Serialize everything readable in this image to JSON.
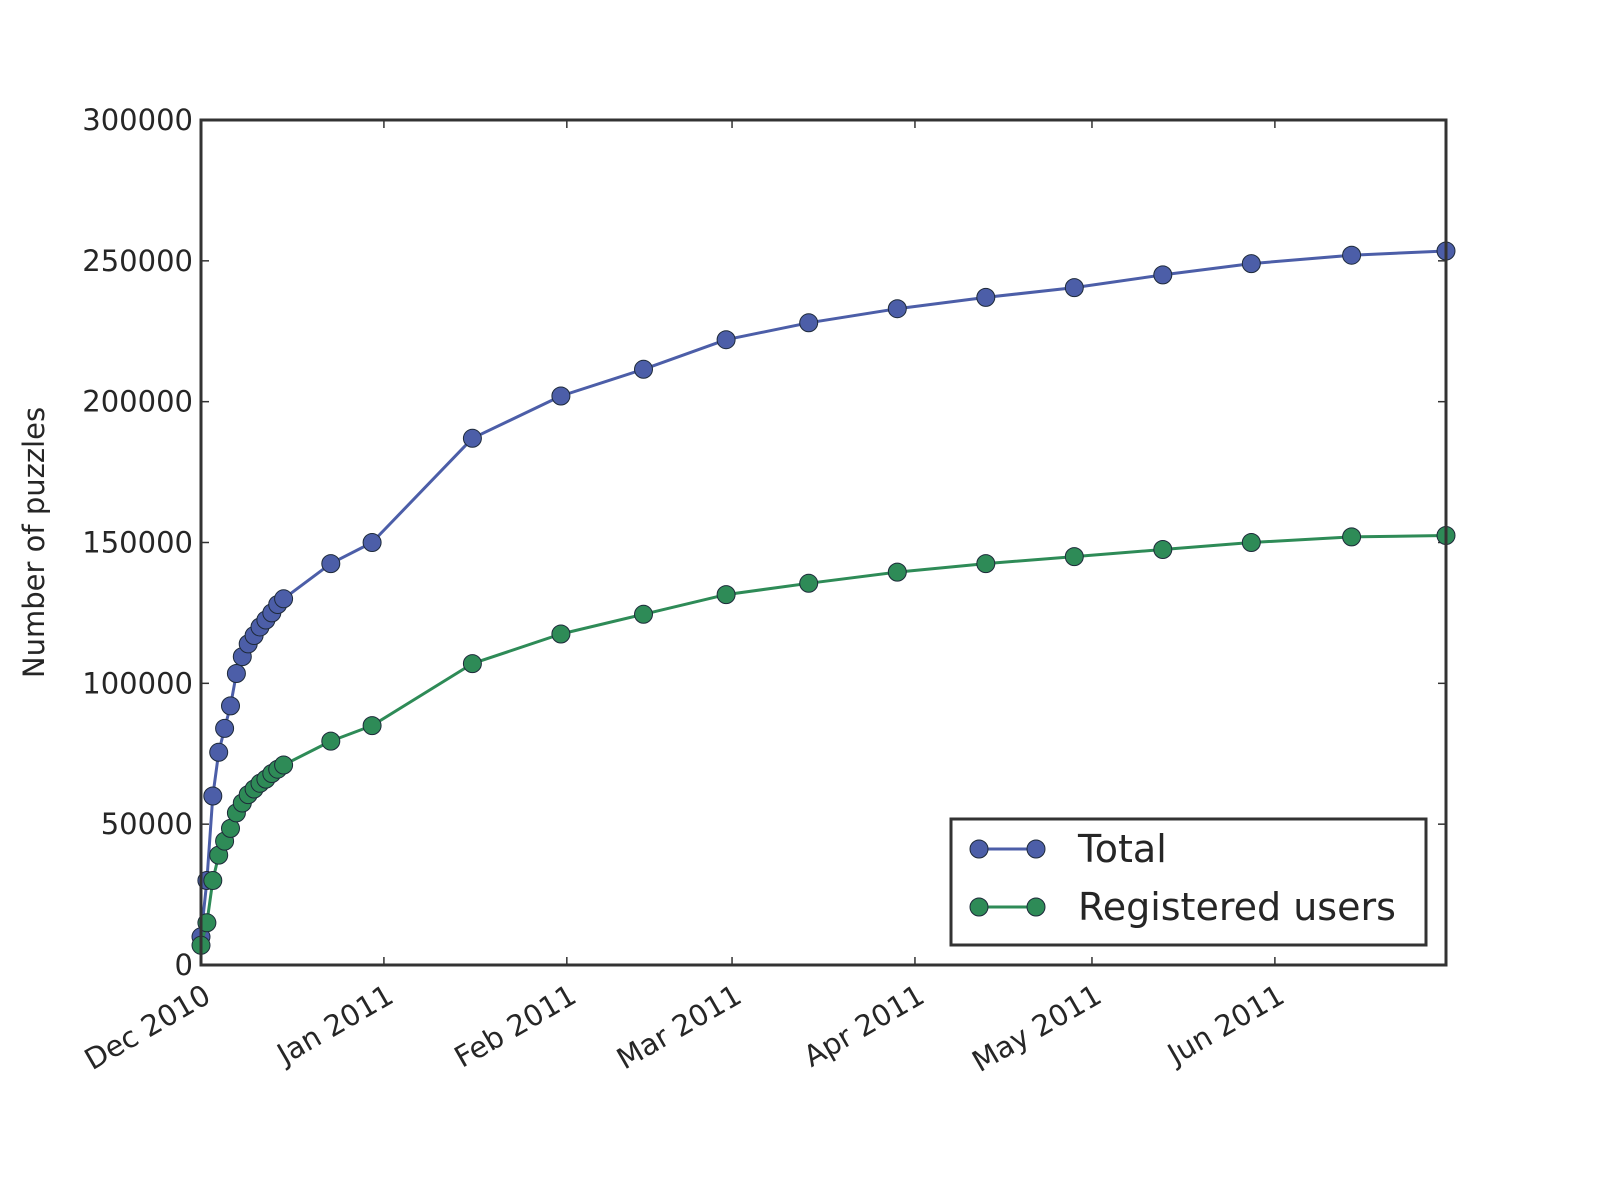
{
  "chart_data": {
    "type": "line",
    "title": "",
    "xlabel": "",
    "ylabel": "Number of puzzles",
    "x_scale": "date",
    "xlim": [
      "2010-12-01",
      "2011-06-30"
    ],
    "ylim": [
      0,
      300000
    ],
    "yticks": [
      0,
      50000,
      100000,
      150000,
      200000,
      250000,
      300000
    ],
    "xticks": [
      {
        "date": "2010-12-01",
        "label": "Dec 2010"
      },
      {
        "date": "2011-01-01",
        "label": "Jan 2011"
      },
      {
        "date": "2011-02-01",
        "label": "Feb 2011"
      },
      {
        "date": "2011-03-01",
        "label": "Mar 2011"
      },
      {
        "date": "2011-04-01",
        "label": "Apr 2011"
      },
      {
        "date": "2011-05-01",
        "label": "May 2011"
      },
      {
        "date": "2011-06-01",
        "label": "Jun 2011"
      }
    ],
    "grid": false,
    "legend_position": "lower-right",
    "series": [
      {
        "name": "Total",
        "color": "#4c5ea8",
        "marker_color": "#4c5ea8",
        "points": [
          [
            "2010-12-01",
            10000
          ],
          [
            "2010-12-02",
            30000
          ],
          [
            "2010-12-03",
            60000
          ],
          [
            "2010-12-04",
            75500
          ],
          [
            "2010-12-05",
            84000
          ],
          [
            "2010-12-06",
            92000
          ],
          [
            "2010-12-07",
            103500
          ],
          [
            "2010-12-08",
            109500
          ],
          [
            "2010-12-09",
            114000
          ],
          [
            "2010-12-10",
            117000
          ],
          [
            "2010-12-11",
            120000
          ],
          [
            "2010-12-12",
            122500
          ],
          [
            "2010-12-13",
            125000
          ],
          [
            "2010-12-14",
            128000
          ],
          [
            "2010-12-15",
            130000
          ],
          [
            "2010-12-23",
            142500
          ],
          [
            "2010-12-30",
            150000
          ],
          [
            "2011-01-16",
            187000
          ],
          [
            "2011-01-31",
            202000
          ],
          [
            "2011-02-14",
            211500
          ],
          [
            "2011-02-28",
            222000
          ],
          [
            "2011-03-14",
            228000
          ],
          [
            "2011-03-29",
            233000
          ],
          [
            "2011-04-13",
            237000
          ],
          [
            "2011-04-28",
            240500
          ],
          [
            "2011-05-13",
            245000
          ],
          [
            "2011-05-28",
            249000
          ],
          [
            "2011-06-14",
            252000
          ],
          [
            "2011-06-30",
            253500
          ]
        ]
      },
      {
        "name": "Registered users",
        "color": "#2e8b57",
        "marker_color": "#2e8b57",
        "points": [
          [
            "2010-12-01",
            7000
          ],
          [
            "2010-12-02",
            15000
          ],
          [
            "2010-12-03",
            30000
          ],
          [
            "2010-12-04",
            39000
          ],
          [
            "2010-12-05",
            44000
          ],
          [
            "2010-12-06",
            48500
          ],
          [
            "2010-12-07",
            54000
          ],
          [
            "2010-12-08",
            57500
          ],
          [
            "2010-12-09",
            60500
          ],
          [
            "2010-12-10",
            62500
          ],
          [
            "2010-12-11",
            64500
          ],
          [
            "2010-12-12",
            66000
          ],
          [
            "2010-12-13",
            68000
          ],
          [
            "2010-12-14",
            69500
          ],
          [
            "2010-12-15",
            71000
          ],
          [
            "2010-12-23",
            79500
          ],
          [
            "2010-12-30",
            85000
          ],
          [
            "2011-01-16",
            107000
          ],
          [
            "2011-01-31",
            117500
          ],
          [
            "2011-02-14",
            124500
          ],
          [
            "2011-02-28",
            131500
          ],
          [
            "2011-03-14",
            135500
          ],
          [
            "2011-03-29",
            139500
          ],
          [
            "2011-04-13",
            142500
          ],
          [
            "2011-04-28",
            145000
          ],
          [
            "2011-05-13",
            147500
          ],
          [
            "2011-05-28",
            150000
          ],
          [
            "2011-06-14",
            152000
          ],
          [
            "2011-06-30",
            152500
          ]
        ]
      }
    ]
  }
}
